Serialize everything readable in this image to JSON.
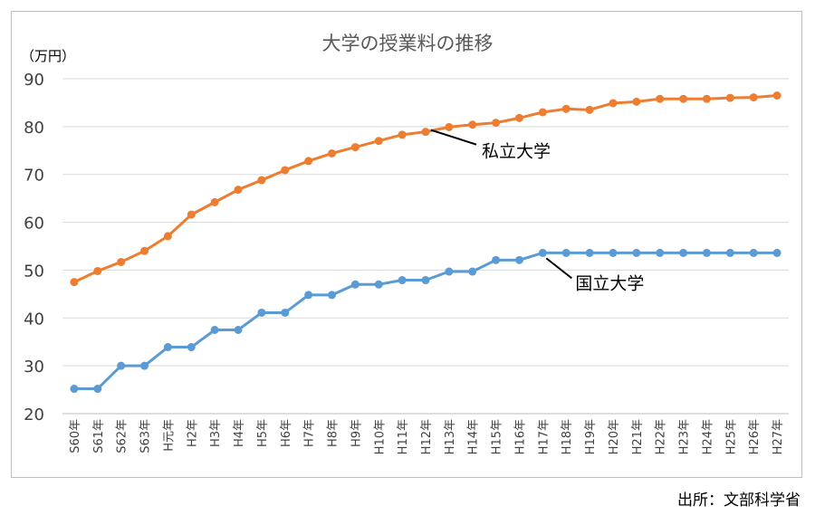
{
  "source": "出所：文部科学省",
  "chart_data": {
    "type": "line",
    "title": "大学の授業料の推移",
    "unit_label": "（万円）",
    "ylim": [
      20,
      90
    ],
    "yticks": [
      "90",
      "80",
      "70",
      "60",
      "50",
      "40",
      "30",
      "20"
    ],
    "grid": "horizontal",
    "categories": [
      "S60年",
      "S61年",
      "S62年",
      "S63年",
      "H元年",
      "H2年",
      "H3年",
      "H4年",
      "H5年",
      "H6年",
      "H7年",
      "H8年",
      "H9年",
      "H10年",
      "H11年",
      "H12年",
      "H13年",
      "H14年",
      "H15年",
      "H16年",
      "H17年",
      "H18年",
      "H19年",
      "H20年",
      "H21年",
      "H22年",
      "H23年",
      "H24年",
      "H25年",
      "H26年",
      "H27年"
    ],
    "series": [
      {
        "name": "私立大学",
        "color": "#ED7D31",
        "values": [
          47.5,
          49.8,
          51.7,
          54.0,
          57.1,
          61.6,
          64.2,
          66.8,
          68.8,
          70.9,
          72.8,
          74.4,
          75.7,
          77.0,
          78.3,
          78.9,
          79.9,
          80.4,
          80.8,
          81.8,
          83.0,
          83.7,
          83.5,
          84.9,
          85.2,
          85.8,
          85.8,
          85.8,
          86.0,
          86.1,
          86.5
        ]
      },
      {
        "name": "国立大学",
        "color": "#5B9BD5",
        "values": [
          25.2,
          25.2,
          30.0,
          30.0,
          33.9,
          33.9,
          37.5,
          37.5,
          41.1,
          41.1,
          44.8,
          44.8,
          47.0,
          47.0,
          47.9,
          47.9,
          49.7,
          49.7,
          52.1,
          52.1,
          53.6,
          53.6,
          53.6,
          53.6,
          53.6,
          53.6,
          53.6,
          53.6,
          53.6,
          53.6,
          53.6
        ]
      }
    ]
  }
}
